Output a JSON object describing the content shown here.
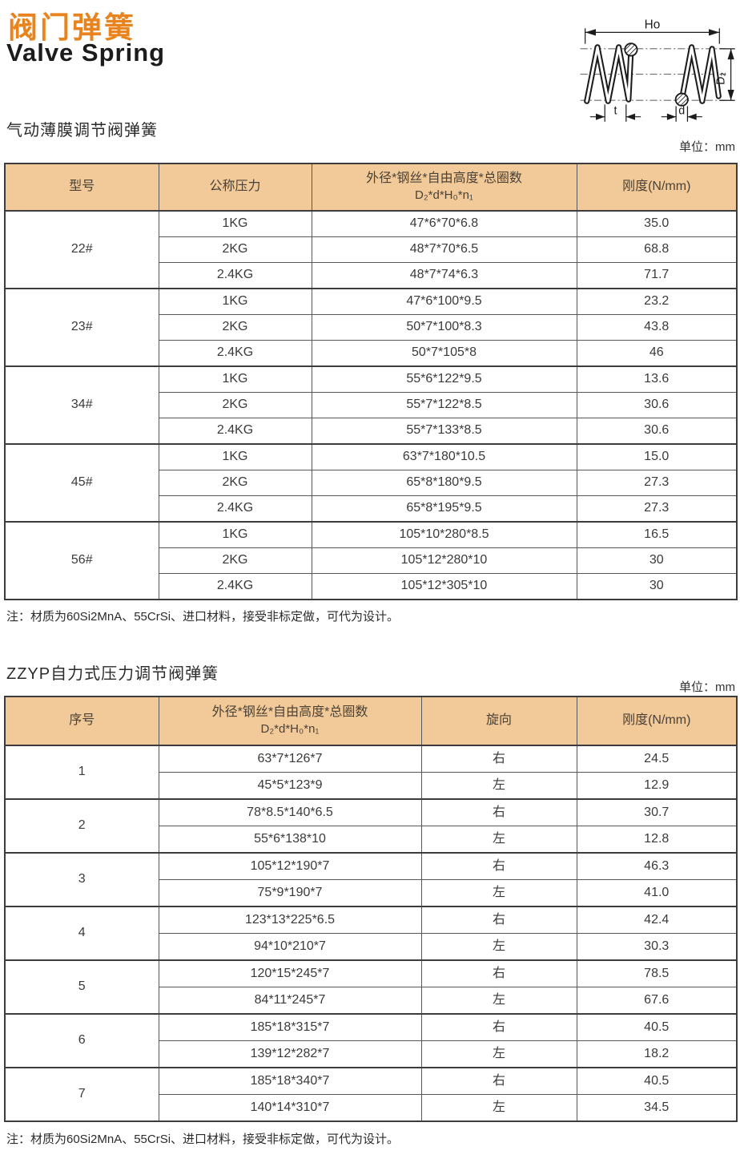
{
  "page": {
    "title_cn": "阀门弹簧",
    "title_en": "Valve Spring"
  },
  "colors": {
    "accent_orange": "#e8831d",
    "table_header_fill": "#f2c998",
    "table_border": "#3c3c3c"
  },
  "diagram": {
    "labels": {
      "free_height": "Ho",
      "outer_diameter": "D₂",
      "pitch": "t",
      "wire_diameter": "d"
    }
  },
  "section1": {
    "title": "气动薄膜调节阀弹簧",
    "unit": "单位：mm",
    "note": "注：材质为60Si2MnA、55CrSi、进口材料，接受非标定做，可代为设计。",
    "table": {
      "headers": {
        "model": "型号",
        "pressure": "公称压力",
        "spec1": "外径*钢丝*自由高度*总圈数",
        "spec2": "D₂*d*H₀*n₁",
        "stiffness": "刚度(N/mm)"
      },
      "groups": [
        {
          "model": "22#",
          "rows": [
            [
              "1KG",
              "47*6*70*6.8",
              "35.0"
            ],
            [
              "2KG",
              "48*7*70*6.5",
              "68.8"
            ],
            [
              "2.4KG",
              "48*7*74*6.3",
              "71.7"
            ]
          ]
        },
        {
          "model": "23#",
          "rows": [
            [
              "1KG",
              "47*6*100*9.5",
              "23.2"
            ],
            [
              "2KG",
              "50*7*100*8.3",
              "43.8"
            ],
            [
              "2.4KG",
              "50*7*105*8",
              "46"
            ]
          ]
        },
        {
          "model": "34#",
          "rows": [
            [
              "1KG",
              "55*6*122*9.5",
              "13.6"
            ],
            [
              "2KG",
              "55*7*122*8.5",
              "30.6"
            ],
            [
              "2.4KG",
              "55*7*133*8.5",
              "30.6"
            ]
          ]
        },
        {
          "model": "45#",
          "rows": [
            [
              "1KG",
              "63*7*180*10.5",
              "15.0"
            ],
            [
              "2KG",
              "65*8*180*9.5",
              "27.3"
            ],
            [
              "2.4KG",
              "65*8*195*9.5",
              "27.3"
            ]
          ]
        },
        {
          "model": "56#",
          "rows": [
            [
              "1KG",
              "105*10*280*8.5",
              "16.5"
            ],
            [
              "2KG",
              "105*12*280*10",
              "30"
            ],
            [
              "2.4KG",
              "105*12*305*10",
              "30"
            ]
          ]
        }
      ]
    }
  },
  "section2": {
    "title": "ZZYP自力式压力调节阀弹簧",
    "unit": "单位：mm",
    "note": "注：材质为60Si2MnA、55CrSi、进口材料，接受非标定做，可代为设计。",
    "table": {
      "headers": {
        "no": "序号",
        "spec1": "外径*钢丝*自由高度*总圈数",
        "spec2": "D₂*d*H₀*n₁",
        "direction": "旋向",
        "stiffness": "刚度(N/mm)"
      },
      "groups": [
        {
          "no": "1",
          "rows": [
            [
              "63*7*126*7",
              "右",
              "24.5"
            ],
            [
              "45*5*123*9",
              "左",
              "12.9"
            ]
          ]
        },
        {
          "no": "2",
          "rows": [
            [
              "78*8.5*140*6.5",
              "右",
              "30.7"
            ],
            [
              "55*6*138*10",
              "左",
              "12.8"
            ]
          ]
        },
        {
          "no": "3",
          "rows": [
            [
              "105*12*190*7",
              "右",
              "46.3"
            ],
            [
              "75*9*190*7",
              "左",
              "41.0"
            ]
          ]
        },
        {
          "no": "4",
          "rows": [
            [
              "123*13*225*6.5",
              "右",
              "42.4"
            ],
            [
              "94*10*210*7",
              "左",
              "30.3"
            ]
          ]
        },
        {
          "no": "5",
          "rows": [
            [
              "120*15*245*7",
              "右",
              "78.5"
            ],
            [
              "84*11*245*7",
              "左",
              "67.6"
            ]
          ]
        },
        {
          "no": "6",
          "rows": [
            [
              "185*18*315*7",
              "右",
              "40.5"
            ],
            [
              "139*12*282*7",
              "左",
              "18.2"
            ]
          ]
        },
        {
          "no": "7",
          "rows": [
            [
              "185*18*340*7",
              "右",
              "40.5"
            ],
            [
              "140*14*310*7",
              "左",
              "34.5"
            ]
          ]
        }
      ]
    }
  }
}
